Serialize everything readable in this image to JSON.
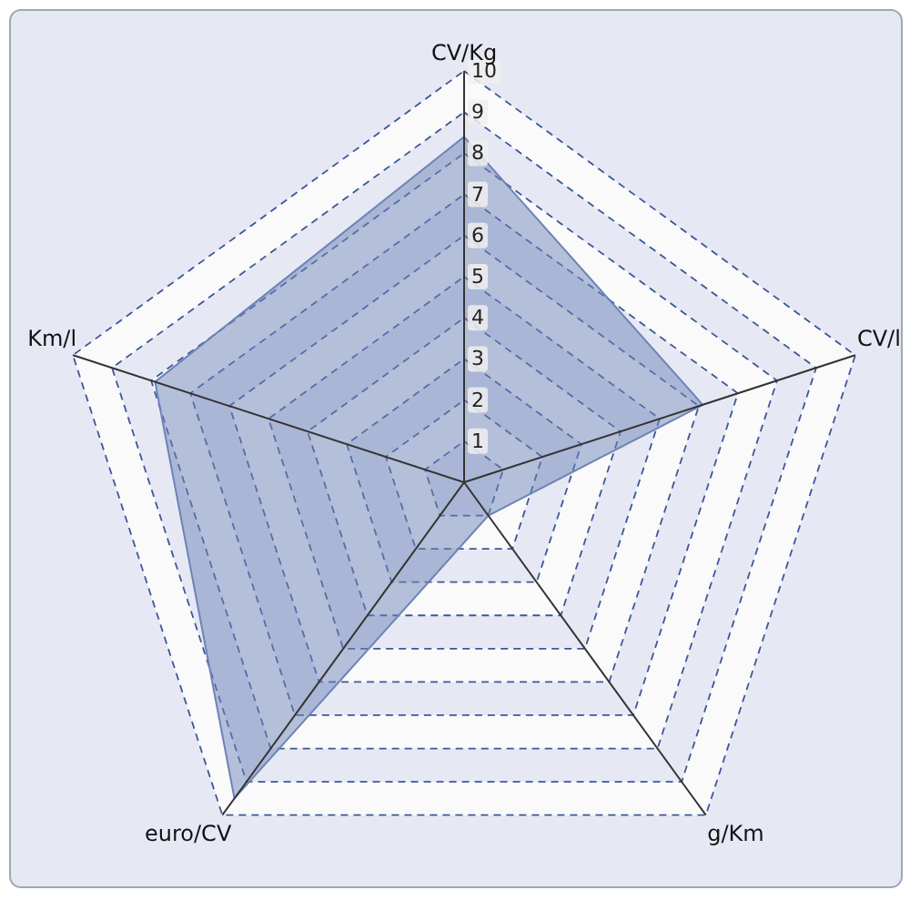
{
  "chart_data": {
    "type": "radar",
    "categories": [
      "CV/Kg",
      "CV/l",
      "g/Km",
      "euro/CV",
      "Km/l"
    ],
    "ylim": [
      0,
      10
    ],
    "yticks": [
      1,
      2,
      3,
      4,
      5,
      6,
      7,
      8,
      9,
      10
    ],
    "grid": true,
    "series": [
      {
        "color": "#6d83b7",
        "values": [
          8.4,
          6.1,
          1.0,
          9.5,
          7.9
        ]
      }
    ]
  }
}
